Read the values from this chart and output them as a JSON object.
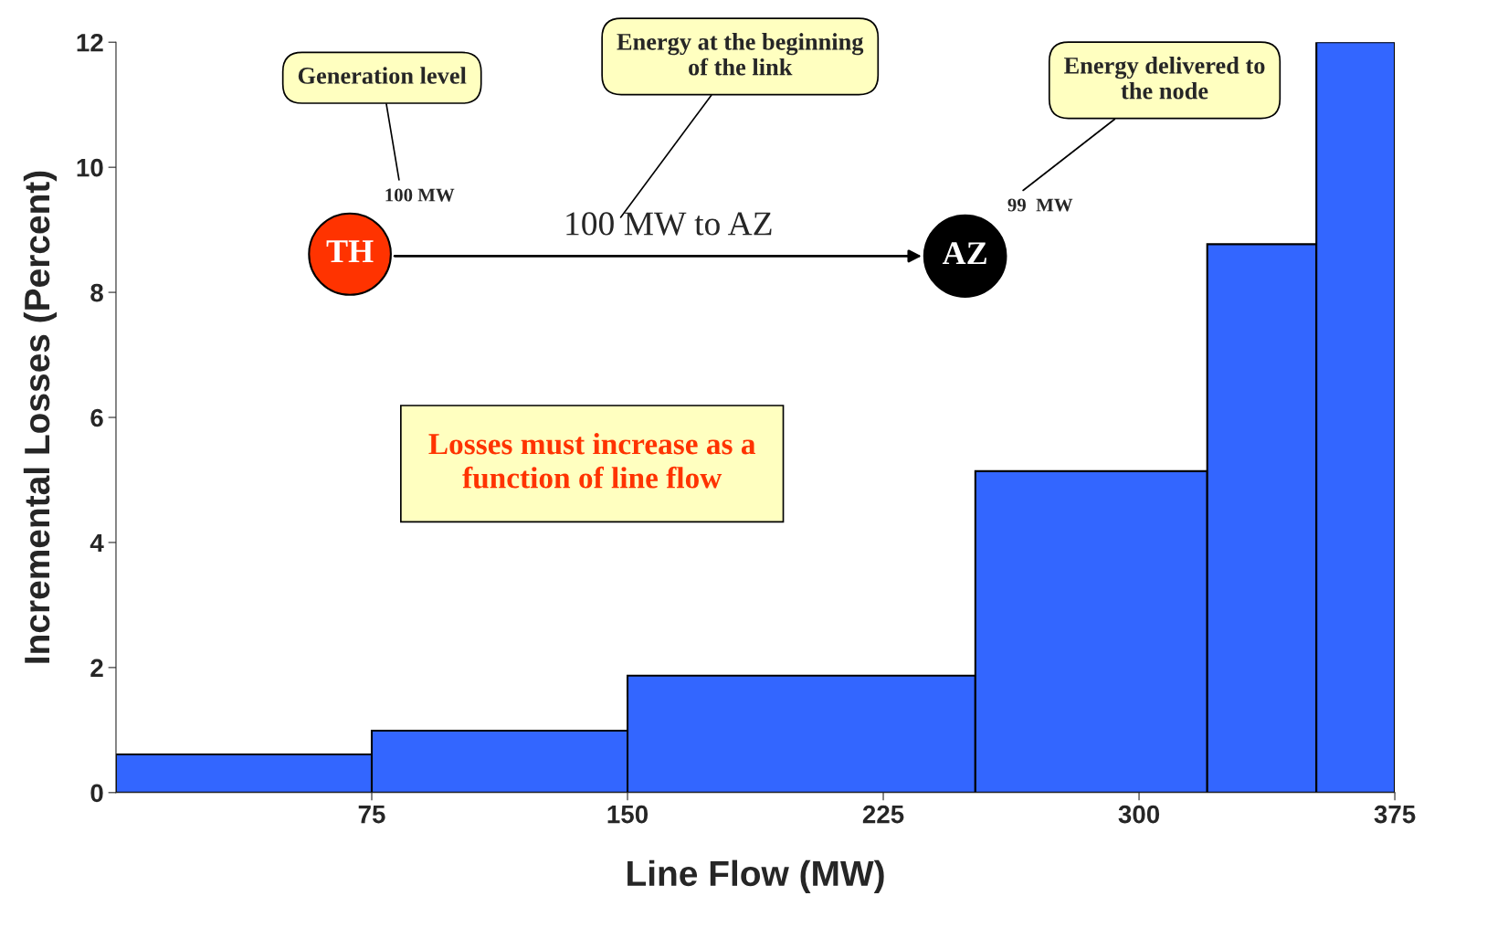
{
  "chart_data": {
    "type": "histogram",
    "xlabel": "Line Flow (MW)",
    "ylabel": "Incremental Losses (Percent)",
    "bins": [
      0,
      75,
      150,
      252,
      320,
      352,
      375
    ],
    "values": [
      0.61,
      0.99,
      1.87,
      5.14,
      8.77,
      12.0
    ],
    "color": "#3366ff",
    "xlim": [
      0,
      375
    ],
    "xticks": [
      75,
      150,
      225,
      300,
      375
    ],
    "ylim": [
      0,
      12
    ],
    "yticks": [
      0,
      2,
      4,
      6,
      8,
      10,
      12
    ],
    "grid": false,
    "annotations": [
      "Generation level",
      "100 MW",
      "Energy at the beginning of the link",
      "100 MW to AZ",
      "Energy delivered to the node",
      "99  MW",
      "TH",
      "AZ",
      "Losses must increase as a function of line flow"
    ]
  }
}
